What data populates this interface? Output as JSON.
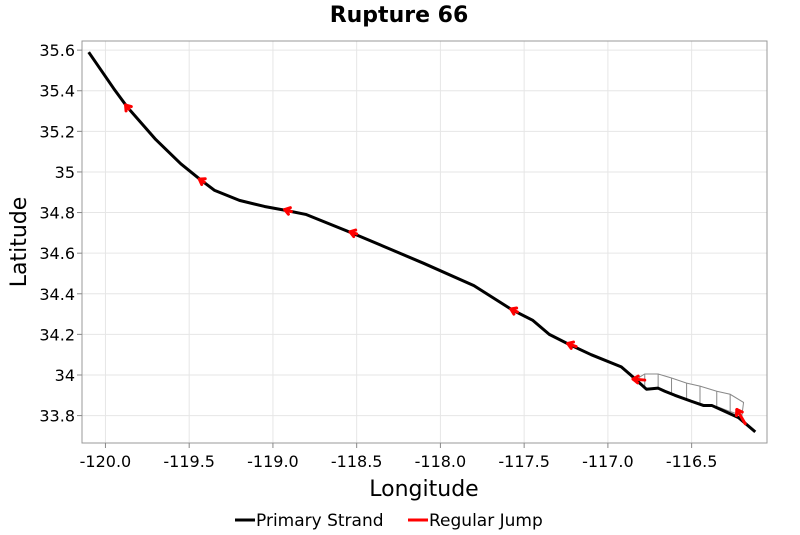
{
  "chart_data": {
    "type": "line",
    "title": "Rupture 66",
    "xlabel": "Longitude",
    "ylabel": "Latitude",
    "xlim": [
      -120.14,
      -116.05
    ],
    "ylim": [
      33.665,
      35.645
    ],
    "x_ticks": [
      -120.0,
      -119.5,
      -119.0,
      -118.5,
      -118.0,
      -117.5,
      -117.0,
      -116.5
    ],
    "x_tick_labels": [
      "-120.0",
      "-119.5",
      "-119.0",
      "-118.5",
      "-118.0",
      "-117.5",
      "-117.0",
      "-116.5"
    ],
    "y_ticks": [
      33.8,
      34.0,
      34.2,
      34.4,
      34.6,
      34.8,
      35.0,
      35.2,
      35.4,
      35.6
    ],
    "y_tick_labels": [
      "33.8",
      "34",
      "34.2",
      "34.4",
      "34.6",
      "34.8",
      "35",
      "35.2",
      "35.4",
      "35.6"
    ],
    "grid": true,
    "legend_position": "bottom-center",
    "series": [
      {
        "name": "Primary Strand",
        "color": "#000000",
        "style": "line",
        "points": [
          [
            -120.1,
            35.59
          ],
          [
            -119.95,
            35.41
          ],
          [
            -119.87,
            35.32
          ],
          [
            -119.7,
            35.16
          ],
          [
            -119.55,
            35.04
          ],
          [
            -119.43,
            34.96
          ],
          [
            -119.35,
            34.91
          ],
          [
            -119.2,
            34.86
          ],
          [
            -119.05,
            34.83
          ],
          [
            -118.92,
            34.81
          ],
          [
            -118.8,
            34.79
          ],
          [
            -118.53,
            34.7
          ],
          [
            -118.3,
            34.62
          ],
          [
            -118.1,
            34.55
          ],
          [
            -117.8,
            34.44
          ],
          [
            -117.57,
            34.32
          ],
          [
            -117.45,
            34.27
          ],
          [
            -117.35,
            34.2
          ],
          [
            -117.23,
            34.15
          ],
          [
            -117.1,
            34.1
          ],
          [
            -116.92,
            34.04
          ],
          [
            -116.85,
            33.99
          ],
          [
            -116.77,
            33.93
          ],
          [
            -116.7,
            33.935
          ],
          [
            -116.66,
            33.92
          ],
          [
            -116.6,
            33.9
          ],
          [
            -116.5,
            33.87
          ],
          [
            -116.43,
            33.85
          ],
          [
            -116.38,
            33.85
          ],
          [
            -116.3,
            33.82
          ],
          [
            -116.22,
            33.79
          ],
          [
            -116.12,
            33.72
          ]
        ]
      },
      {
        "name": "Regular Jump",
        "color": "#ff0000",
        "style": "arrows",
        "arrows": [
          [
            [
              -119.86,
              35.31
            ],
            [
              -119.88,
              35.33
            ]
          ],
          [
            [
              -119.41,
              34.95
            ],
            [
              -119.44,
              34.965
            ]
          ],
          [
            [
              -118.89,
              34.805
            ],
            [
              -118.93,
              34.815
            ]
          ],
          [
            [
              -118.5,
              34.695
            ],
            [
              -118.54,
              34.705
            ]
          ],
          [
            [
              -117.54,
              34.31
            ],
            [
              -117.58,
              34.325
            ]
          ],
          [
            [
              -117.19,
              34.14
            ],
            [
              -117.24,
              34.155
            ]
          ],
          [
            [
              -116.78,
              33.975
            ],
            [
              -116.85,
              33.98
            ]
          ],
          [
            [
              -116.18,
              33.76
            ],
            [
              -116.23,
              33.83
            ]
          ]
        ]
      }
    ],
    "fault_surface": {
      "color": "#888888",
      "top": [
        [
          -116.81,
          33.99
        ],
        [
          -116.78,
          34.005
        ],
        [
          -116.7,
          34.005
        ],
        [
          -116.62,
          33.985
        ],
        [
          -116.53,
          33.96
        ],
        [
          -116.45,
          33.945
        ],
        [
          -116.35,
          33.92
        ],
        [
          -116.27,
          33.905
        ],
        [
          -116.19,
          33.865
        ]
      ],
      "bottom": [
        [
          -116.83,
          33.965
        ],
        [
          -116.78,
          33.935
        ],
        [
          -116.7,
          33.935
        ],
        [
          -116.62,
          33.905
        ],
        [
          -116.53,
          33.88
        ],
        [
          -116.45,
          33.855
        ],
        [
          -116.35,
          33.845
        ],
        [
          -116.27,
          33.82
        ],
        [
          -116.2,
          33.8
        ]
      ]
    }
  }
}
